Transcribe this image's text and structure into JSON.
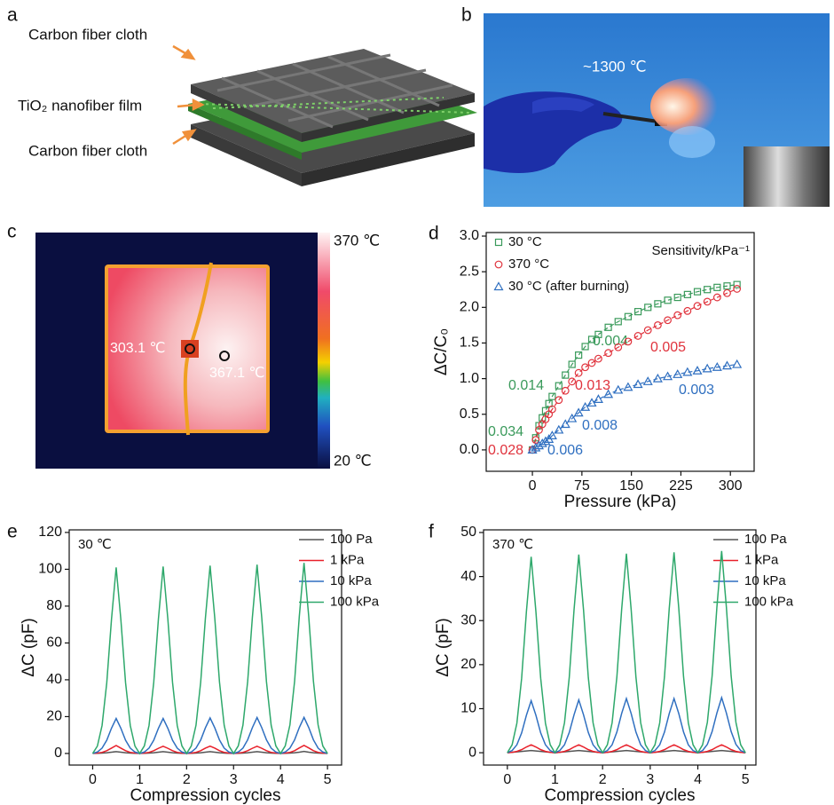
{
  "panel_labels": [
    "a",
    "b",
    "c",
    "d",
    "e",
    "f"
  ],
  "panel_a": {
    "labels": [
      "Carbon fiber cloth",
      "TiO₂ nanofiber film",
      "Carbon fiber cloth"
    ]
  },
  "panel_b": {
    "annotation": "~1300 ℃"
  },
  "panel_c": {
    "colorbar_max": "370 ℃",
    "colorbar_min": "20 ℃",
    "spot_labels": [
      "303.1 ℃",
      "367.1 ℃"
    ]
  },
  "chart_data": [
    {
      "type": "scatter",
      "xlabel": "Pressure (kPa)",
      "ylabel": "ΔC/C₀",
      "legend_title": "Sensitivity/kPa⁻¹",
      "legend": "top-left",
      "x": [
        0,
        5,
        10,
        15,
        20,
        25,
        30,
        40,
        50,
        60,
        70,
        80,
        90,
        100,
        115,
        130,
        145,
        160,
        175,
        190,
        205,
        220,
        235,
        250,
        265,
        280,
        295,
        310
      ],
      "series": [
        {
          "name": "30 °C",
          "color": "#3a9a5b",
          "marker": "square",
          "sensitivities": [
            0.034,
            0.014,
            0.004
          ],
          "values": [
            0,
            0.17,
            0.34,
            0.45,
            0.55,
            0.65,
            0.75,
            0.9,
            1.05,
            1.2,
            1.33,
            1.45,
            1.55,
            1.62,
            1.72,
            1.8,
            1.87,
            1.94,
            2.0,
            2.05,
            2.1,
            2.14,
            2.18,
            2.22,
            2.25,
            2.28,
            2.3,
            2.32
          ]
        },
        {
          "name": "370 °C",
          "color": "#e0323c",
          "marker": "circle",
          "sensitivities": [
            0.028,
            0.013,
            0.005
          ],
          "values": [
            0,
            0.14,
            0.28,
            0.36,
            0.43,
            0.5,
            0.57,
            0.7,
            0.83,
            0.96,
            1.08,
            1.16,
            1.22,
            1.28,
            1.36,
            1.44,
            1.52,
            1.6,
            1.68,
            1.75,
            1.82,
            1.89,
            1.95,
            2.02,
            2.08,
            2.14,
            2.2,
            2.26
          ]
        },
        {
          "name": "30 °C (after burning)",
          "color": "#2f6fc0",
          "marker": "triangle",
          "sensitivities": [
            0.006,
            0.008,
            0.003
          ],
          "values": [
            0,
            0.03,
            0.06,
            0.09,
            0.12,
            0.15,
            0.2,
            0.28,
            0.36,
            0.44,
            0.52,
            0.6,
            0.66,
            0.71,
            0.78,
            0.84,
            0.88,
            0.92,
            0.96,
            1.0,
            1.03,
            1.06,
            1.09,
            1.11,
            1.14,
            1.16,
            1.18,
            1.2
          ]
        }
      ],
      "xlim": [
        -70,
        336
      ],
      "ylim": [
        -0.3,
        3.05
      ],
      "xticks": [
        0,
        75,
        150,
        225,
        300
      ],
      "yticks": [
        {
          "value": 0,
          "label": "0.0"
        },
        {
          "value": 0.5,
          "label": "0.5"
        },
        {
          "value": 1,
          "label": "1.0"
        },
        {
          "value": 1.5,
          "label": "1.5"
        },
        {
          "value": 2,
          "label": "2.0"
        },
        {
          "value": 2.5,
          "label": "2.5"
        },
        {
          "value": 3,
          "label": "3.0"
        }
      ]
    },
    {
      "type": "line",
      "annotation": "30 ℃",
      "xlabel": "Compression cycles",
      "ylabel": "ΔC (pF)",
      "legend": "top-right",
      "x": [
        0,
        0.1,
        0.2,
        0.3,
        0.4,
        0.5,
        0.6,
        0.7,
        0.8,
        0.9,
        1,
        1.1,
        1.2,
        1.3,
        1.4,
        1.5,
        1.6,
        1.7,
        1.8,
        1.9,
        2,
        2.1,
        2.2,
        2.3,
        2.4,
        2.5,
        2.6,
        2.7,
        2.8,
        2.9,
        3,
        3.1,
        3.2,
        3.3,
        3.4,
        3.5,
        3.6,
        3.7,
        3.8,
        3.9,
        4,
        4.1,
        4.2,
        4.3,
        4.4,
        4.5,
        4.6,
        4.7,
        4.8,
        4.9,
        5
      ],
      "series": [
        {
          "name": "100 Pa",
          "color": "#555555",
          "values": [
            0,
            0.1,
            0.2,
            0.4,
            0.7,
            1,
            0.7,
            0.4,
            0.2,
            0.1,
            0,
            0.1,
            0.2,
            0.4,
            0.7,
            1,
            0.7,
            0.4,
            0.2,
            0.1,
            0,
            0.1,
            0.2,
            0.4,
            0.7,
            1,
            0.7,
            0.4,
            0.2,
            0.1,
            0,
            0.1,
            0.2,
            0.4,
            0.7,
            1,
            0.7,
            0.4,
            0.2,
            0.1,
            0,
            0.1,
            0.2,
            0.4,
            0.7,
            1.1,
            0.7,
            0.4,
            0.2,
            0.1,
            0
          ]
        },
        {
          "name": "1 kPa",
          "color": "#e8202a",
          "values": [
            0,
            0.2,
            0.6,
            1.5,
            2.9,
            4.3,
            2.9,
            1.5,
            0.6,
            0.2,
            0,
            0.2,
            0.6,
            1.5,
            2.8,
            3.9,
            2.8,
            1.5,
            0.6,
            0.2,
            0,
            0.2,
            0.6,
            1.5,
            2.9,
            4,
            2.9,
            1.5,
            0.6,
            0.2,
            0,
            0.2,
            0.6,
            1.5,
            2.8,
            3.9,
            2.8,
            1.5,
            0.6,
            0.2,
            0,
            0.2,
            0.6,
            1.5,
            3,
            4.4,
            3,
            1.5,
            0.6,
            0.2,
            0
          ]
        },
        {
          "name": "10 kPa",
          "color": "#2f6fc0",
          "values": [
            0,
            0.8,
            2.9,
            7.2,
            13.7,
            19,
            13.7,
            7.2,
            2.9,
            0.8,
            0,
            0.8,
            2.9,
            7.2,
            13.7,
            19,
            13.7,
            7.2,
            2.9,
            0.8,
            0,
            0.8,
            2.9,
            7.3,
            13.9,
            19.3,
            13.9,
            7.3,
            2.9,
            0.8,
            0,
            0.8,
            2.9,
            7.4,
            14,
            19.5,
            14,
            7.4,
            2.9,
            0.8,
            0,
            0.8,
            2.9,
            7.4,
            14.1,
            19.6,
            14.1,
            7.4,
            2.9,
            0.8,
            0
          ]
        },
        {
          "name": "100 kPa",
          "color": "#2ea86b",
          "values": [
            0,
            4,
            15.2,
            38.4,
            72.7,
            101,
            72.7,
            38.4,
            15.2,
            4,
            0,
            4.1,
            15.2,
            38.6,
            73.1,
            101.5,
            73.1,
            38.6,
            15.2,
            4.1,
            0,
            4.1,
            15.3,
            38.8,
            73.4,
            102,
            73.4,
            38.8,
            15.3,
            4.1,
            0,
            4.1,
            15.4,
            39,
            73.8,
            102.5,
            73.8,
            39,
            15.4,
            4.1,
            0,
            4.1,
            15.5,
            39.3,
            74.5,
            103.5,
            74.5,
            39.3,
            15.5,
            4.1,
            0
          ]
        }
      ],
      "xlim": [
        -0.5,
        5.3
      ],
      "ylim": [
        -6.3,
        121.4
      ],
      "xticks": [
        0,
        1,
        2,
        3,
        4,
        5
      ],
      "yticks": [
        0,
        20,
        40,
        60,
        80,
        100,
        120
      ]
    },
    {
      "type": "line",
      "annotation": "370 ℃",
      "xlabel": "Compression cycles",
      "ylabel": "ΔC (pF)",
      "legend": "top-right",
      "x": [
        0,
        0.1,
        0.2,
        0.3,
        0.4,
        0.5,
        0.6,
        0.7,
        0.8,
        0.9,
        1,
        1.1,
        1.2,
        1.3,
        1.4,
        1.5,
        1.6,
        1.7,
        1.8,
        1.9,
        2,
        2.1,
        2.2,
        2.3,
        2.4,
        2.5,
        2.6,
        2.7,
        2.8,
        2.9,
        3,
        3.1,
        3.2,
        3.3,
        3.4,
        3.5,
        3.6,
        3.7,
        3.8,
        3.9,
        4,
        4.1,
        4.2,
        4.3,
        4.4,
        4.5,
        4.6,
        4.7,
        4.8,
        4.9,
        5
      ],
      "series": [
        {
          "name": "100 Pa",
          "color": "#555555",
          "values": [
            0,
            0.1,
            0.2,
            0.3,
            0.4,
            0.5,
            0.4,
            0.3,
            0.2,
            0.1,
            0,
            0.1,
            0.2,
            0.3,
            0.4,
            0.5,
            0.4,
            0.3,
            0.2,
            0.1,
            0,
            0.1,
            0.2,
            0.3,
            0.4,
            0.5,
            0.4,
            0.3,
            0.2,
            0.1,
            0,
            0.1,
            0.2,
            0.3,
            0.4,
            0.5,
            0.4,
            0.3,
            0.2,
            0.1,
            0,
            0.1,
            0.2,
            0.3,
            0.4,
            0.5,
            0.4,
            0.3,
            0.2,
            0.1,
            0
          ]
        },
        {
          "name": "1 kPa",
          "color": "#e8202a",
          "values": [
            0,
            0.1,
            0.3,
            0.7,
            1.3,
            1.8,
            1.3,
            0.7,
            0.3,
            0.1,
            0,
            0.1,
            0.3,
            0.7,
            1.3,
            1.8,
            1.3,
            0.7,
            0.3,
            0.1,
            0,
            0.1,
            0.3,
            0.7,
            1.3,
            1.8,
            1.3,
            0.7,
            0.3,
            0.1,
            0,
            0.1,
            0.3,
            0.7,
            1.3,
            1.8,
            1.3,
            0.7,
            0.3,
            0.1,
            0,
            0.1,
            0.3,
            0.7,
            1.3,
            1.8,
            1.3,
            0.7,
            0.3,
            0.1,
            0
          ]
        },
        {
          "name": "10 kPa",
          "color": "#2f6fc0",
          "values": [
            0,
            0.5,
            1.8,
            4.5,
            8.5,
            11.8,
            8.5,
            4.5,
            1.8,
            0.5,
            0,
            0.5,
            1.8,
            4.6,
            8.6,
            12,
            8.6,
            4.6,
            1.8,
            0.5,
            0,
            0.5,
            1.8,
            4.7,
            8.9,
            12.3,
            8.9,
            4.7,
            1.8,
            0.5,
            0,
            0.5,
            1.8,
            4.7,
            8.9,
            12.3,
            8.9,
            4.7,
            1.8,
            0.5,
            0,
            0.5,
            1.9,
            4.8,
            9,
            12.5,
            9,
            4.8,
            1.9,
            0.5,
            0
          ]
        },
        {
          "name": "100 kPa",
          "color": "#2ea86b",
          "values": [
            0,
            1.8,
            6.7,
            16.9,
            32,
            44.5,
            32,
            16.9,
            6.7,
            1.8,
            0,
            1.8,
            6.8,
            17.1,
            32.4,
            45,
            32.4,
            17.1,
            6.8,
            1.8,
            0,
            1.8,
            6.8,
            17.2,
            32.5,
            45.2,
            32.5,
            17.2,
            6.8,
            1.8,
            0,
            1.8,
            6.8,
            17.3,
            32.8,
            45.5,
            32.8,
            17.3,
            6.8,
            1.8,
            0,
            1.8,
            6.9,
            17.4,
            33,
            45.8,
            33,
            17.4,
            6.9,
            1.8,
            0
          ]
        }
      ],
      "xlim": [
        -0.5,
        5.22
      ],
      "ylim": [
        -2.8,
        50.6
      ],
      "xticks": [
        0,
        1,
        2,
        3,
        4,
        5
      ],
      "yticks": [
        0,
        10,
        20,
        30,
        40,
        50
      ]
    }
  ]
}
